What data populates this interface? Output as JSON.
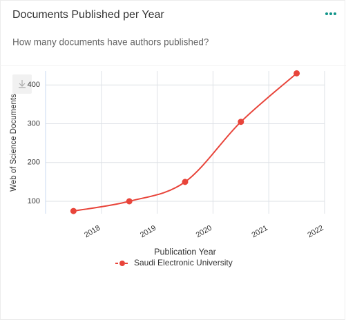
{
  "header": {
    "title": "Documents Published per Year",
    "subtitle": "How many documents have authors published?"
  },
  "chart_data": {
    "type": "line",
    "categories": [
      "2018",
      "2019",
      "2020",
      "2021",
      "2022"
    ],
    "series": [
      {
        "name": "Saudi Electronic University",
        "color": "#e8443a",
        "values": [
          75,
          100,
          150,
          305,
          430
        ]
      }
    ],
    "xlabel": "Publication Year",
    "ylabel": "Web of Science Documents",
    "ylim": [
      68,
      436
    ],
    "yticks": [
      100,
      200,
      300,
      400
    ],
    "grid": true
  }
}
